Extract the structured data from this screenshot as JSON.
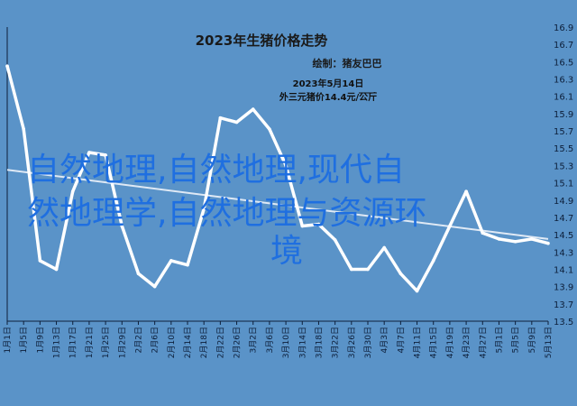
{
  "chart_data": {
    "type": "line",
    "title": "2023年生猪价格走势",
    "subtitle": "绘制：猪友巴巴",
    "annotation_lines": [
      "2023年5月14日",
      "外三元猪价14.4元/公斤"
    ],
    "watermark_lines": [
      "自然地理,自然地理,现代自",
      "然地理学,自然地理与资源环",
      "境"
    ],
    "ylim": [
      13.5,
      16.9
    ],
    "yticks": [
      "13.5",
      "13.7",
      "13.9",
      "14.1",
      "14.3",
      "14.5",
      "14.7",
      "14.9",
      "15.1",
      "15.3",
      "15.5",
      "15.7",
      "15.9",
      "16.1",
      "16.3",
      "16.5",
      "16.7",
      "16.9"
    ],
    "x": [
      "1月1日",
      "1月5日",
      "1月9日",
      "1月13日",
      "1月17日",
      "1月21日",
      "1月25日",
      "1月29日",
      "2月2日",
      "2月6日",
      "2月10日",
      "2月14日",
      "2月18日",
      "2月22日",
      "2月26日",
      "3月2日",
      "3月6日",
      "3月10日",
      "3月14日",
      "3月18日",
      "3月22日",
      "3月26日",
      "3月30日",
      "4月3日",
      "4月7日",
      "4月11日",
      "4月15日",
      "4月19日",
      "4月23日",
      "4月27日",
      "5月1日",
      "5月5日",
      "5月9日",
      "5月13日"
    ],
    "series": [
      {
        "values": [
          16.45,
          15.72,
          14.2,
          14.1,
          15.0,
          15.45,
          15.42,
          14.6,
          14.05,
          13.9,
          14.2,
          14.15,
          14.8,
          15.85,
          15.8,
          15.95,
          15.72,
          15.3,
          14.6,
          14.62,
          14.44,
          14.1,
          14.1,
          14.35,
          14.05,
          13.85,
          14.2,
          14.6,
          15.0,
          14.52,
          14.45,
          14.42,
          14.45,
          14.4
        ],
        "color": "#ffffff"
      }
    ],
    "trendline": {
      "start": 15.25,
      "end": 14.45,
      "color": "#dfe9f5"
    },
    "colors": {
      "background": "#5a93c8",
      "axis": "#0d1f3a",
      "line": "#ffffff",
      "watermark": "#1f6fe0"
    }
  }
}
